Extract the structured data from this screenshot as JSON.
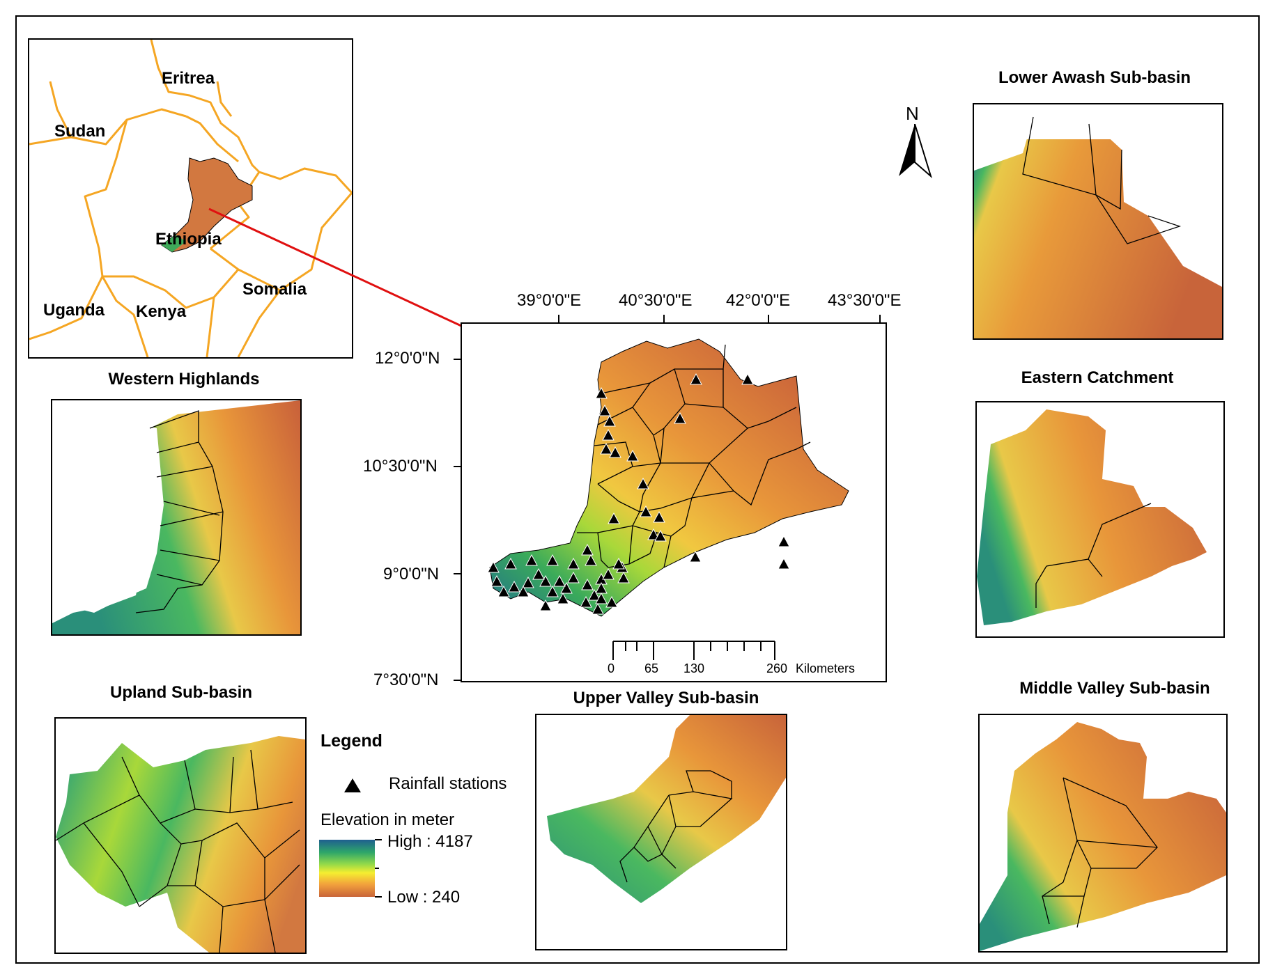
{
  "locator": {
    "countries": [
      "Eritrea",
      "Sudan",
      "Ethiopia",
      "Somalia",
      "Uganda",
      "Kenya"
    ]
  },
  "main_map": {
    "lon_ticks": [
      "39°0'0\"E",
      "40°30'0\"E",
      "42°0'0\"E",
      "43°30'0\"E"
    ],
    "lat_ticks": [
      "12°0'0\"N",
      "10°30'0\"N",
      "9°0'0\"N",
      "7°30'0\"N"
    ],
    "scale_bar": {
      "labels": [
        "0",
        "65",
        "130",
        "260"
      ],
      "unit": "Kilometers"
    }
  },
  "north_arrow": "N",
  "panels": {
    "lower_awash": "Lower Awash Sub-basin",
    "western_highlands": "Western Highlands",
    "eastern_catchment": "Eastern Catchment",
    "upland": "Upland Sub-basin",
    "upper_valley": "Upper Valley Sub-basin",
    "middle_valley": "Middle Valley Sub-basin"
  },
  "legend": {
    "title": "Legend",
    "station_label": "Rainfall stations",
    "elevation_title": "Elevation in meter",
    "high": "High : 4187",
    "low": "Low : 240",
    "colors": [
      "#1f5f8f",
      "#2ea66a",
      "#8fd84a",
      "#f5ee30",
      "#f2a23c",
      "#c8643a"
    ]
  },
  "colors": {
    "country_border": "#f5a623",
    "pointer_line": "#e01010",
    "basin_dark": "#c8643a",
    "basin_light": "#e8a040"
  }
}
